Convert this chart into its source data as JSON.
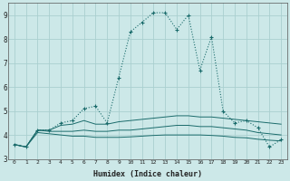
{
  "xlabel": "Humidex (Indice chaleur)",
  "x": [
    0,
    1,
    2,
    3,
    4,
    5,
    6,
    7,
    8,
    9,
    10,
    11,
    12,
    13,
    14,
    15,
    16,
    17,
    18,
    19,
    20,
    21,
    22,
    23
  ],
  "line1": [
    3.6,
    3.5,
    4.2,
    4.2,
    4.5,
    4.6,
    5.1,
    5.2,
    4.5,
    6.4,
    8.3,
    8.7,
    9.1,
    9.1,
    8.4,
    9.0,
    6.7,
    8.1,
    5.0,
    4.5,
    4.6,
    4.3,
    3.5,
    3.8
  ],
  "line2": [
    3.6,
    3.5,
    4.2,
    4.2,
    4.4,
    4.45,
    4.6,
    4.45,
    4.45,
    4.55,
    4.6,
    4.65,
    4.7,
    4.75,
    4.8,
    4.8,
    4.75,
    4.75,
    4.7,
    4.65,
    4.6,
    4.55,
    4.5,
    4.45
  ],
  "line3": [
    3.6,
    3.5,
    4.2,
    4.15,
    4.15,
    4.15,
    4.2,
    4.15,
    4.15,
    4.2,
    4.2,
    4.25,
    4.3,
    4.35,
    4.4,
    4.4,
    4.35,
    4.35,
    4.3,
    4.25,
    4.2,
    4.1,
    4.05,
    4.0
  ],
  "line4": [
    3.6,
    3.5,
    4.1,
    4.05,
    4.0,
    3.95,
    3.95,
    3.9,
    3.9,
    3.9,
    3.92,
    3.95,
    3.98,
    4.0,
    4.0,
    4.0,
    4.0,
    3.98,
    3.95,
    3.9,
    3.88,
    3.82,
    3.78,
    3.75
  ],
  "line_color": "#1a6b6b",
  "bg_color": "#cce8e8",
  "grid_color": "#aacfcf",
  "xlim": [
    -0.5,
    23.5
  ],
  "ylim": [
    3.0,
    9.5
  ],
  "yticks": [
    3,
    4,
    5,
    6,
    7,
    8,
    9
  ],
  "xticks": [
    0,
    1,
    2,
    3,
    4,
    5,
    6,
    7,
    8,
    9,
    10,
    11,
    12,
    13,
    14,
    15,
    16,
    17,
    18,
    19,
    20,
    21,
    22,
    23
  ]
}
